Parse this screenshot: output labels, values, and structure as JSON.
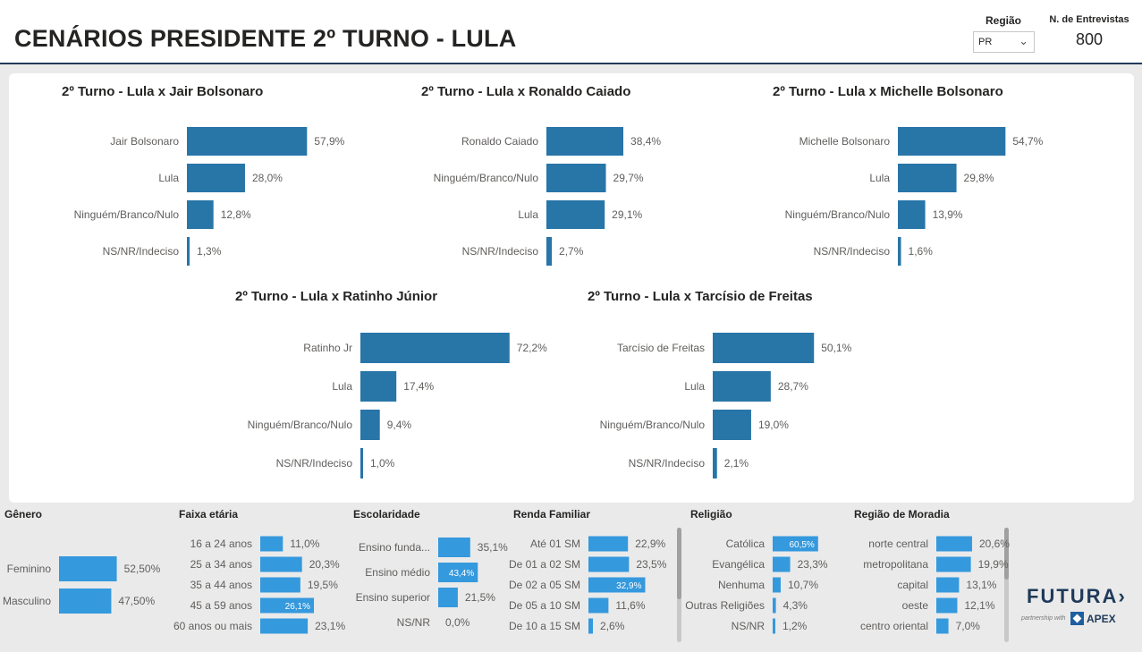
{
  "header": {
    "title": "CENÁRIOS PRESIDENTE 2º TURNO - LULA",
    "filter_label": "Região",
    "filter_value": "PR",
    "count_label": "N. de Entrevistas",
    "count_value": "800"
  },
  "colors": {
    "main_bar": "#2875a8",
    "small_bar": "#3599dd",
    "header_border": "#1f3a5a"
  },
  "chart_data": [
    {
      "id": "bolsonaro",
      "type": "bar",
      "orientation": "horizontal",
      "title": "2º Turno - Lula x Jair Bolsonaro",
      "categories": [
        "Jair Bolsonaro",
        "Lula",
        "Ninguém/Branco/Nulo",
        "NS/NR/Indeciso"
      ],
      "values": [
        57.9,
        28.0,
        12.8,
        1.3
      ],
      "value_labels": [
        "57,9%",
        "28,0%",
        "12,8%",
        "1,3%"
      ]
    },
    {
      "id": "caiado",
      "type": "bar",
      "orientation": "horizontal",
      "title": "2º Turno - Lula x Ronaldo Caiado",
      "categories": [
        "Ronaldo Caiado",
        "Ninguém/Branco/Nulo",
        "Lula",
        "NS/NR/Indeciso"
      ],
      "values": [
        38.4,
        29.7,
        29.1,
        2.7
      ],
      "value_labels": [
        "38,4%",
        "29,7%",
        "29,1%",
        "2,7%"
      ]
    },
    {
      "id": "michelle",
      "type": "bar",
      "orientation": "horizontal",
      "title": "2º Turno - Lula x Michelle Bolsonaro",
      "categories": [
        "Michelle Bolsonaro",
        "Lula",
        "Ninguém/Branco/Nulo",
        "NS/NR/Indeciso"
      ],
      "values": [
        54.7,
        29.8,
        13.9,
        1.6
      ],
      "value_labels": [
        "54,7%",
        "29,8%",
        "13,9%",
        "1,6%"
      ]
    },
    {
      "id": "ratinho",
      "type": "bar",
      "orientation": "horizontal",
      "title": "2º Turno - Lula x Ratinho Júnior",
      "categories": [
        "Ratinho Jr",
        "Lula",
        "Ninguém/Branco/Nulo",
        "NS/NR/Indeciso"
      ],
      "values": [
        72.2,
        17.4,
        9.4,
        1.0
      ],
      "value_labels": [
        "72,2%",
        "17,4%",
        "9,4%",
        "1,0%"
      ]
    },
    {
      "id": "tarcisio",
      "type": "bar",
      "orientation": "horizontal",
      "title": "2º Turno - Lula x Tarcísio de Freitas",
      "categories": [
        "Tarcísio de Freitas",
        "Lula",
        "Ninguém/Branco/Nulo",
        "NS/NR/Indeciso"
      ],
      "values": [
        50.1,
        28.7,
        19.0,
        2.1
      ],
      "value_labels": [
        "50,1%",
        "28,7%",
        "19,0%",
        "2,1%"
      ]
    },
    {
      "id": "genero",
      "type": "bar",
      "orientation": "horizontal",
      "title": "Gênero",
      "categories": [
        "Feminino",
        "Masculino"
      ],
      "values": [
        52.5,
        47.5
      ],
      "value_labels": [
        "52,50%",
        "47,50%"
      ]
    },
    {
      "id": "faixa",
      "type": "bar",
      "orientation": "horizontal",
      "title": "Faixa etária",
      "categories": [
        "16 a 24 anos",
        "25 a 34 anos",
        "35 a 44 anos",
        "45 a 59 anos",
        "60 anos ou mais"
      ],
      "values": [
        11.0,
        20.3,
        19.5,
        26.1,
        23.1
      ],
      "value_labels": [
        "11,0%",
        "20,3%",
        "19,5%",
        "26,1%",
        "23,1%"
      ]
    },
    {
      "id": "escolaridade",
      "type": "bar",
      "orientation": "horizontal",
      "title": "Escolaridade",
      "categories": [
        "Ensino funda...",
        "Ensino médio",
        "Ensino superior",
        "NS/NR"
      ],
      "values": [
        35.1,
        43.4,
        21.5,
        0.0
      ],
      "value_labels": [
        "35,1%",
        "43,4%",
        "21,5%",
        "0,0%"
      ]
    },
    {
      "id": "renda",
      "type": "bar",
      "orientation": "horizontal",
      "title": "Renda Familiar",
      "categories": [
        "Até 01 SM",
        "De 01 a 02 SM",
        "De 02 a 05 SM",
        "De 05 a 10 SM",
        "De 10 a 15 SM"
      ],
      "values": [
        22.9,
        23.5,
        32.9,
        11.6,
        2.6
      ],
      "value_labels": [
        "22,9%",
        "23,5%",
        "32,9%",
        "11,6%",
        "2,6%"
      ]
    },
    {
      "id": "religiao",
      "type": "bar",
      "orientation": "horizontal",
      "title": "Religião",
      "categories": [
        "Católica",
        "Evangélica",
        "Nenhuma",
        "Outras Religiões",
        "NS/NR"
      ],
      "values": [
        60.5,
        23.3,
        10.7,
        4.3,
        1.2
      ],
      "value_labels": [
        "60,5%",
        "23,3%",
        "10,7%",
        "4,3%",
        "1,2%"
      ]
    },
    {
      "id": "moradia",
      "type": "bar",
      "orientation": "horizontal",
      "title": "Região de Moradia",
      "categories": [
        "norte central",
        "metropolitana",
        "capital",
        "oeste",
        "centro oriental"
      ],
      "values": [
        20.6,
        19.9,
        13.1,
        12.1,
        7.0
      ],
      "value_labels": [
        "20,6%",
        "19,9%",
        "13,1%",
        "12,1%",
        "7,0%"
      ]
    }
  ],
  "logo": {
    "name": "FUTURA",
    "partner_text": "partnership with",
    "partner_name": "APEX"
  }
}
